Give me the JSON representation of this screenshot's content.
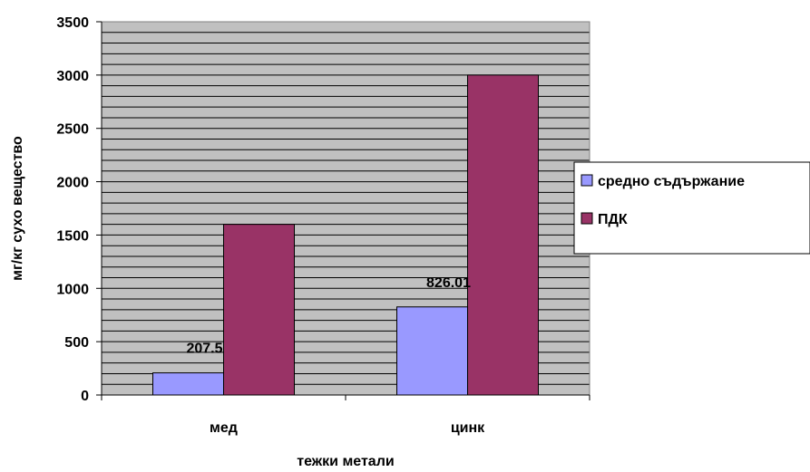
{
  "chart_data": {
    "type": "bar",
    "categories": [
      "мед",
      "цинк"
    ],
    "series": [
      {
        "name": "средно съдържание",
        "values": [
          207.5,
          826.01
        ],
        "color": "#9999ff",
        "labels": [
          "207.5",
          "826.01"
        ]
      },
      {
        "name": "ПДК",
        "values": [
          1600,
          3000
        ],
        "color": "#993366",
        "labels": []
      }
    ],
    "xlabel": "тежки метали",
    "ylabel": "мг/кг  сухо вещество",
    "ylim": [
      0,
      3500
    ],
    "yticks": [
      "0",
      "500",
      "1000",
      "1500",
      "2000",
      "2500",
      "3000",
      "3500"
    ],
    "grid": true,
    "plot_background": "#c0c0c0",
    "legend_position": "right"
  }
}
